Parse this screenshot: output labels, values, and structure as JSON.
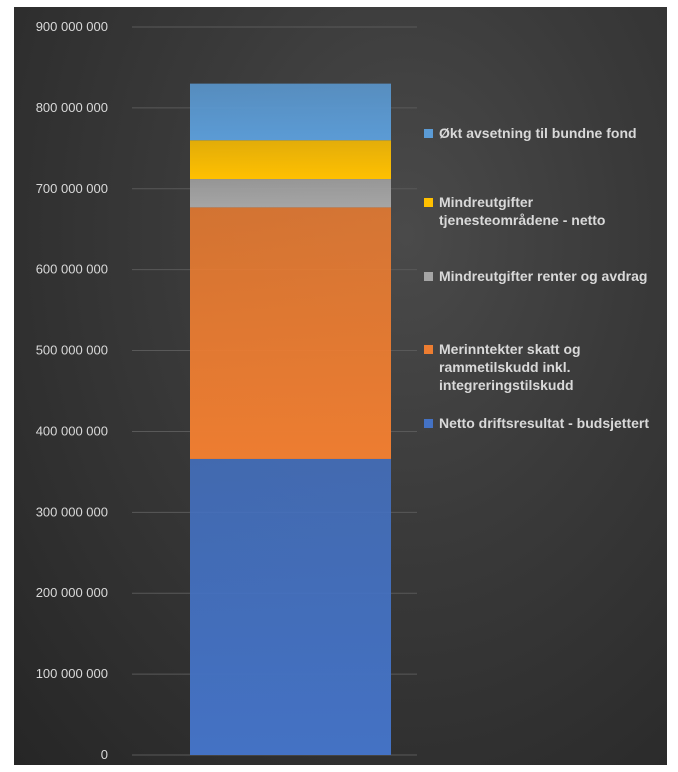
{
  "chart_data": {
    "type": "bar",
    "stacked": true,
    "categories": [
      ""
    ],
    "ylim": [
      0,
      900000000
    ],
    "yticks": [
      0,
      100000000,
      200000000,
      300000000,
      400000000,
      500000000,
      600000000,
      700000000,
      800000000,
      900000000
    ],
    "ytick_labels": [
      "0",
      "100 000 000",
      "200 000 000",
      "300 000 000",
      "400 000 000",
      "500 000 000",
      "600 000 000",
      "700 000 000",
      "800 000 000",
      "900 000 000"
    ],
    "grid": true,
    "legend_position": "right",
    "series": [
      {
        "name": "Netto driftsresultat - budsjettert",
        "values": [
          366000000
        ],
        "color": "#4472c4"
      },
      {
        "name": "Merinntekter skatt og rammetilskudd inkl. integreringstilskudd",
        "values": [
          311000000
        ],
        "color": "#ed7d31"
      },
      {
        "name": "Mindreutgifter renter og avdrag",
        "values": [
          35000000
        ],
        "color": "#a5a5a5"
      },
      {
        "name": "Mindreutgifter tjenesteområdene - netto",
        "values": [
          48000000
        ],
        "color": "#ffc000"
      },
      {
        "name": "Økt avsetning til bundne fond",
        "values": [
          70000000
        ],
        "color": "#5b9bd5"
      }
    ]
  }
}
